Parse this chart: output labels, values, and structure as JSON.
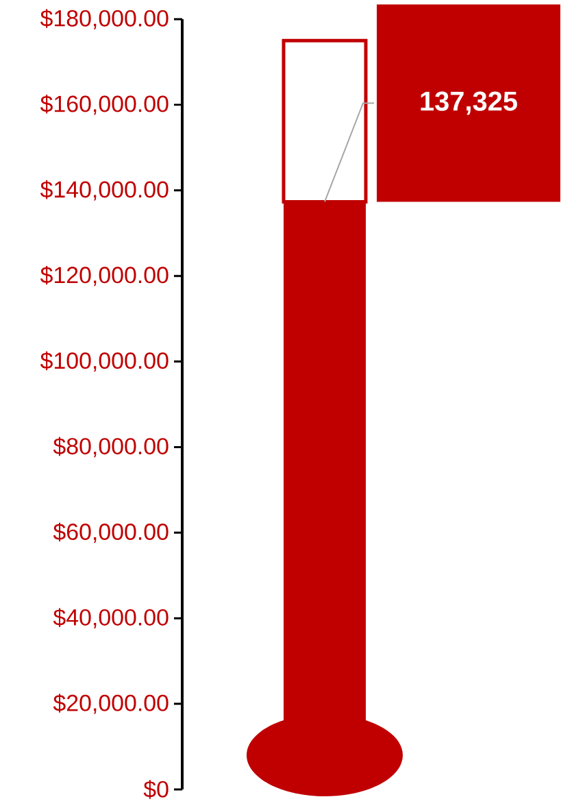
{
  "chart_data": {
    "type": "bar",
    "stacked": true,
    "categories": [
      null
    ],
    "series": [
      {
        "color": "#c00000",
        "values": [
          137325
        ]
      },
      {
        "color": "#ffffff",
        "values": [
          37675
        ]
      }
    ],
    "annotations": [
      "137,325"
    ],
    "ylim": [
      0,
      180000
    ],
    "yticks": [
      {
        "value": 0,
        "label": "$0"
      },
      {
        "value": 20000,
        "label": "$20,000.00"
      },
      {
        "value": 40000,
        "label": "$40,000.00"
      },
      {
        "value": 60000,
        "label": "$60,000.00"
      },
      {
        "value": 80000,
        "label": "$80,000.00"
      },
      {
        "value": 100000,
        "label": "$100,000.00"
      },
      {
        "value": 120000,
        "label": "$120,000.00"
      },
      {
        "value": 140000,
        "label": "$140,000.00"
      },
      {
        "value": 160000,
        "label": "$160,000.00"
      },
      {
        "value": 180000,
        "label": "$180,000.00"
      }
    ]
  }
}
